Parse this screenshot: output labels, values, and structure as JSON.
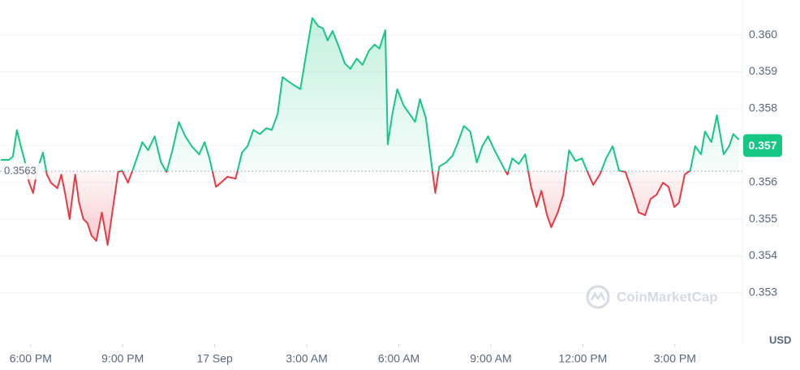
{
  "chart_data": {
    "type": "line",
    "x": [
      -0.98,
      -0.71,
      -0.58,
      -0.45,
      -0.32,
      -0.18,
      -0.05,
      0.08,
      0.21,
      0.4,
      0.53,
      0.66,
      0.87,
      1.0,
      1.13,
      1.27,
      1.45,
      1.58,
      1.72,
      1.85,
      1.98,
      2.14,
      2.32,
      2.51,
      2.66,
      2.85,
      2.98,
      3.17,
      3.32,
      3.46,
      3.64,
      3.83,
      4.04,
      4.25,
      4.43,
      4.62,
      4.83,
      5.04,
      5.25,
      5.49,
      5.67,
      5.83,
      6.04,
      6.2,
      6.41,
      6.68,
      6.89,
      7.07,
      7.26,
      7.47,
      7.68,
      7.86,
      8.05,
      8.21,
      8.39,
      8.58,
      8.79,
      9.0,
      9.18,
      9.37,
      9.53,
      9.68,
      9.84,
      10.05,
      10.24,
      10.42,
      10.63,
      10.82,
      11.03,
      11.21,
      11.37,
      11.56,
      11.64,
      11.79,
      11.95,
      12.16,
      12.35,
      12.53,
      12.69,
      12.88,
      13.06,
      13.19,
      13.32,
      13.54,
      13.75,
      13.93,
      14.12,
      14.33,
      14.54,
      14.72,
      14.91,
      15.12,
      15.33,
      15.54,
      15.7,
      15.91,
      16.12,
      16.31,
      16.49,
      16.65,
      16.83,
      16.97,
      17.18,
      17.36,
      17.55,
      17.76,
      17.97,
      18.15,
      18.34,
      18.55,
      18.76,
      18.97,
      19.18,
      19.39,
      19.6,
      19.82,
      20.03,
      20.21,
      20.4,
      20.61,
      20.79,
      20.98,
      21.13,
      21.32,
      21.5,
      21.66,
      21.85,
      21.98,
      22.19,
      22.37,
      22.59,
      22.77,
      22.9,
      23.09
    ],
    "values": [
      0.35661,
      0.35661,
      0.3567,
      0.35742,
      0.35698,
      0.35654,
      0.35599,
      0.35571,
      0.35632,
      0.35681,
      0.35621,
      0.35599,
      0.35584,
      0.35621,
      0.35566,
      0.355,
      0.35621,
      0.35544,
      0.355,
      0.35489,
      0.35456,
      0.35441,
      0.35518,
      0.3543,
      0.35518,
      0.35628,
      0.35632,
      0.35599,
      0.35632,
      0.35665,
      0.35709,
      0.35687,
      0.35725,
      0.35654,
      0.35628,
      0.35687,
      0.35764,
      0.35725,
      0.35698,
      0.35676,
      0.35709,
      0.35665,
      0.35588,
      0.35599,
      0.35615,
      0.3561,
      0.35681,
      0.35698,
      0.35742,
      0.35731,
      0.35747,
      0.35742,
      0.35786,
      0.35886,
      0.35875,
      0.35864,
      0.35853,
      0.35958,
      0.36046,
      0.36024,
      0.36018,
      0.35985,
      0.36011,
      0.35967,
      0.35923,
      0.35908,
      0.35936,
      0.35919,
      0.35958,
      0.35974,
      0.35963,
      0.36013,
      0.35703,
      0.35786,
      0.35853,
      0.35808,
      0.35786,
      0.35764,
      0.35826,
      0.35775,
      0.35654,
      0.35571,
      0.35643,
      0.35654,
      0.35672,
      0.35709,
      0.35753,
      0.35738,
      0.35654,
      0.35698,
      0.35725,
      0.35687,
      0.35654,
      0.35621,
      0.35665,
      0.3565,
      0.35676,
      0.35588,
      0.35533,
      0.35577,
      0.35511,
      0.35478,
      0.35518,
      0.35566,
      0.35687,
      0.35658,
      0.35665,
      0.35628,
      0.35593,
      0.35621,
      0.35665,
      0.35698,
      0.35632,
      0.35628,
      0.35577,
      0.35518,
      0.35511,
      0.35555,
      0.35566,
      0.35599,
      0.35588,
      0.35533,
      0.35544,
      0.35621,
      0.35632,
      0.35698,
      0.35676,
      0.35738,
      0.35709,
      0.35782,
      0.35676,
      0.35698,
      0.35731,
      0.35716
    ],
    "up_color": "#16c784",
    "down_color": "#ea3943",
    "reference_price": 0.3563,
    "last_price": 0.357,
    "xlim": [
      -1,
      23.2
    ],
    "xticks": [
      {
        "value": 0,
        "label": "6:00 PM"
      },
      {
        "value": 3,
        "label": "9:00 PM"
      },
      {
        "value": 6,
        "label": "17 Sep"
      },
      {
        "value": 9,
        "label": "3:00 AM"
      },
      {
        "value": 12,
        "label": "6:00 AM"
      },
      {
        "value": 15,
        "label": "9:00 AM"
      },
      {
        "value": 18,
        "label": "12:00 PM"
      },
      {
        "value": 21,
        "label": "3:00 PM"
      }
    ],
    "ylim": [
      0.35161,
      0.36095
    ],
    "yticks": [
      0.353,
      0.354,
      0.355,
      0.356,
      0.357,
      0.358,
      0.359,
      {
        "value": 0.36,
        "label": "0.360"
      }
    ],
    "currency": "USD",
    "watermark": "CoinMarketCap",
    "grid": true
  }
}
